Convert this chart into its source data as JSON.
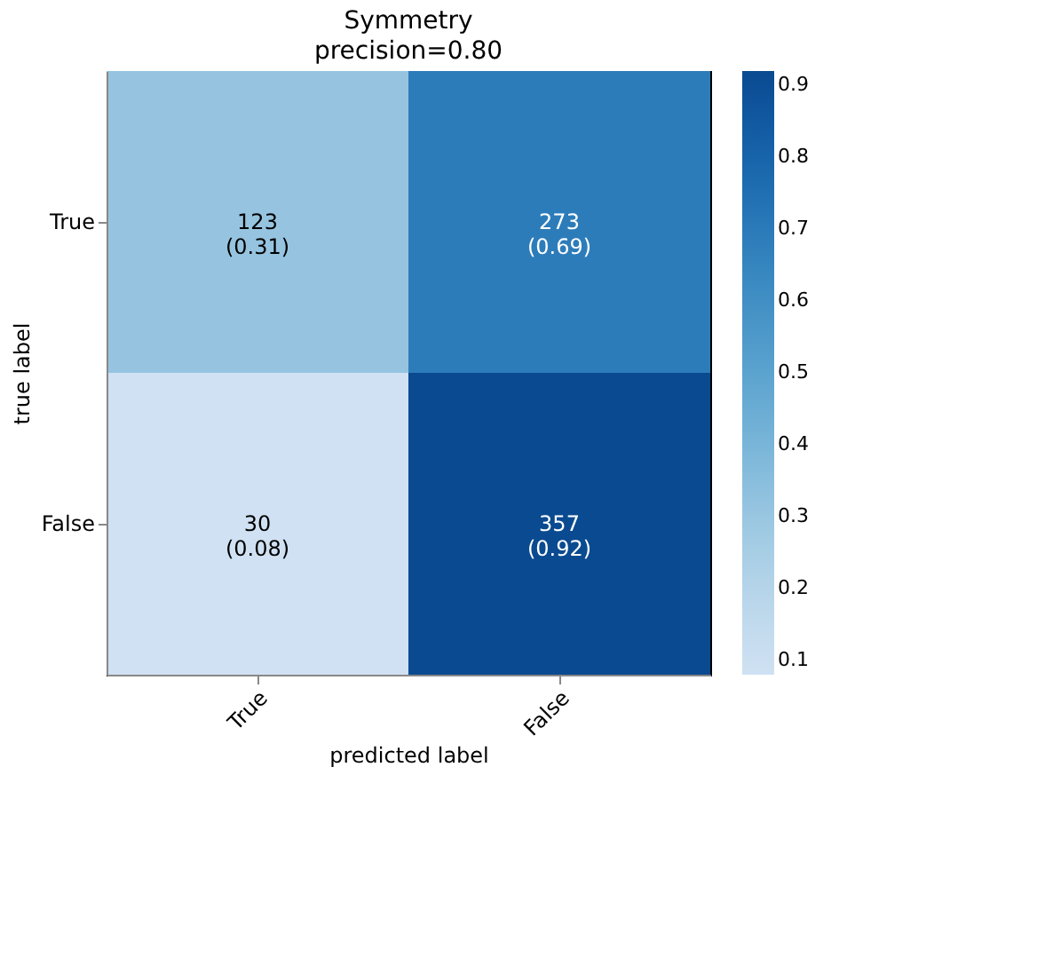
{
  "chart_data": {
    "type": "heatmap",
    "title": "Symmetry",
    "subtitle": "precision=0.80",
    "xlabel": "predicted label",
    "ylabel": "true label",
    "categories": [
      "True",
      "False"
    ],
    "y_categories": [
      "True",
      "False"
    ],
    "cells": [
      [
        0.31,
        0.69
      ],
      [
        0.08,
        0.92
      ]
    ],
    "cell_labels": [
      [
        "123\n(0.31)",
        "273\n(0.69)"
      ],
      [
        "30\n(0.08)",
        "357\n(0.92)"
      ]
    ],
    "clim": [
      0.08,
      0.92
    ],
    "cticks": [
      0.1,
      0.2,
      0.3,
      0.4,
      0.5,
      0.6,
      0.7,
      0.8,
      0.9
    ],
    "grid": false
  }
}
